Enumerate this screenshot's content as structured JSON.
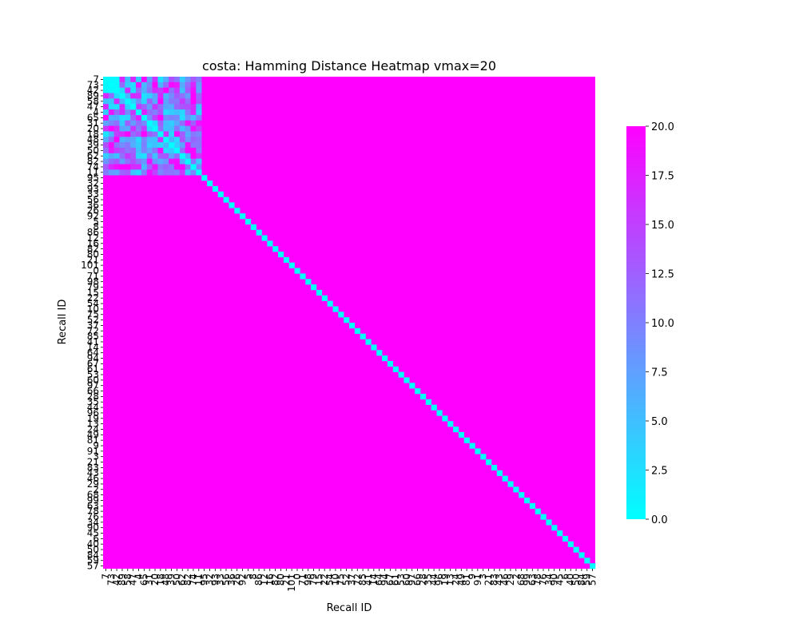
{
  "chart_data": {
    "type": "heatmap",
    "title": "costa: Hamming Distance Heatmap vmax=20",
    "xlabel": "Recall ID",
    "ylabel": "Recall ID",
    "n": 90,
    "cluster_size": 18,
    "labels": [
      "7",
      "73",
      "42",
      "89",
      "58",
      "47",
      "4",
      "65",
      "31",
      "20",
      "18",
      "48",
      "39",
      "50",
      "62",
      "82",
      "74",
      "11",
      "95",
      "32",
      "93",
      "33",
      "56",
      "36",
      "26",
      "92",
      "5",
      "8",
      "86",
      "12",
      "16",
      "82",
      "80",
      "21",
      "101",
      "0",
      "71",
      "98",
      "79",
      "15",
      "22",
      "54",
      "10",
      "75",
      "52",
      "37",
      "72",
      "85",
      "41",
      "14",
      "64",
      "94",
      "67",
      "61",
      "53",
      "60",
      "97",
      "66",
      "28",
      "35",
      "44",
      "96",
      "19",
      "13",
      "24",
      "49",
      "81",
      "9",
      "91",
      "3",
      "21",
      "83",
      "43",
      "46",
      "29",
      "2",
      "68",
      "99",
      "63",
      "78",
      "76",
      "34",
      "90",
      "45",
      "6",
      "40",
      "50",
      "84",
      "59",
      "57"
    ],
    "diagonal_value": 0,
    "off_cluster_value": 20,
    "cluster_within_value_range": [
      2,
      20
    ],
    "vmin": 0,
    "vmax": 20,
    "colormap": "cool",
    "colorbar": {
      "ticks": [
        "0.0",
        "2.5",
        "5.0",
        "7.5",
        "10.0",
        "12.5",
        "15.0",
        "17.5",
        "20.0"
      ],
      "colors": [
        "#00ffff",
        "#ff00ff"
      ]
    }
  }
}
